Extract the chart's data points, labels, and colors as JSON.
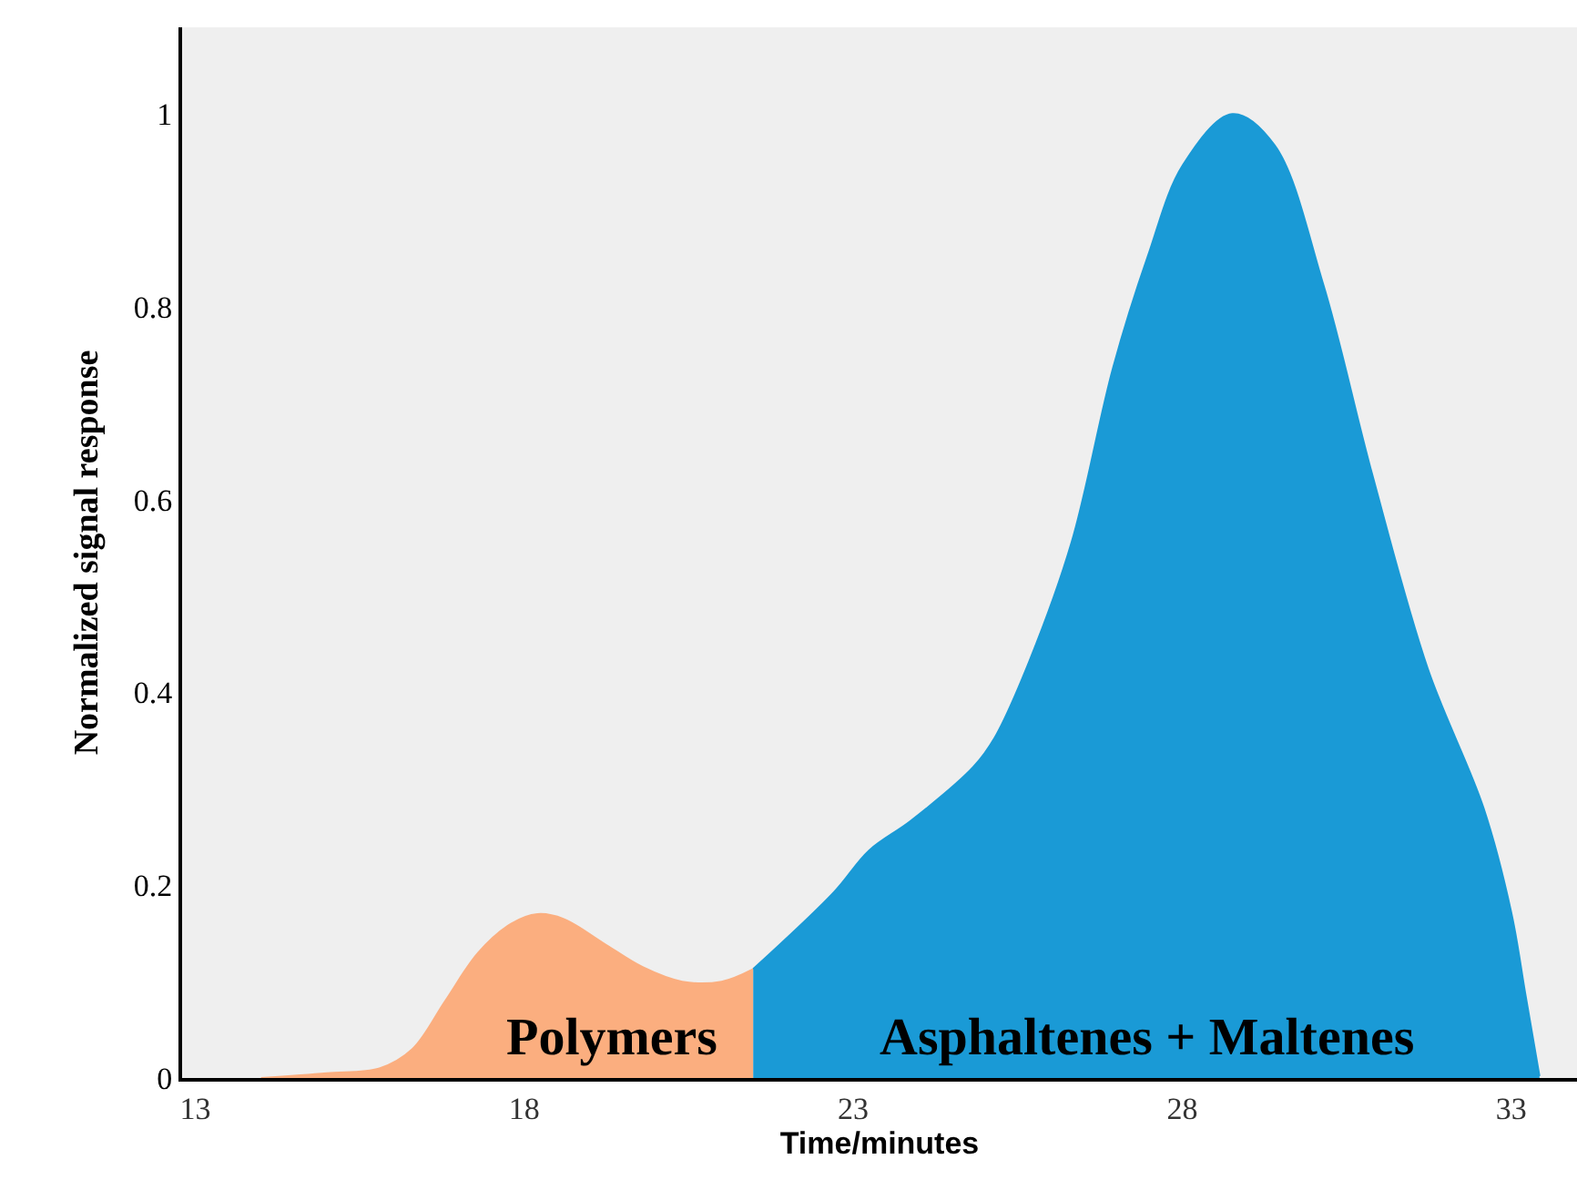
{
  "chart_data": {
    "type": "area",
    "xlabel": "Time/minutes",
    "ylabel": "Normalized signal response",
    "xlim": [
      12.8,
      34.0
    ],
    "ylim": [
      0,
      1.09
    ],
    "xticks": [
      13,
      18,
      23,
      28,
      33
    ],
    "yticks": [
      0,
      0.2,
      0.4,
      0.6,
      0.8,
      1
    ],
    "grid": false,
    "legend": false,
    "series": [
      {
        "name": "Polymers",
        "color": "#fbae7f",
        "x": [
          14.0,
          15.0,
          15.8,
          16.3,
          16.8,
          17.3,
          17.8,
          18.2,
          18.6,
          19.2,
          19.8,
          20.4,
          21.0,
          21.48
        ],
        "values": [
          0,
          0.005,
          0.01,
          0.03,
          0.08,
          0.13,
          0.16,
          0.17,
          0.165,
          0.14,
          0.115,
          0.1,
          0.1,
          0.113
        ]
      },
      {
        "name": "Asphaltenes + Maltenes",
        "color": "#1a9ad6",
        "x": [
          21.48,
          22.71,
          23.24,
          23.88,
          24.83,
          25.15,
          25.68,
          26.32,
          26.95,
          27.48,
          28.01,
          28.76,
          29.4,
          30.14,
          30.88,
          31.73,
          32.58,
          33.0,
          33.22,
          33.43
        ],
        "values": [
          0.113,
          0.193,
          0.236,
          0.267,
          0.323,
          0.353,
          0.433,
          0.556,
          0.737,
          0.853,
          0.947,
          1.0,
          0.968,
          0.824,
          0.628,
          0.425,
          0.28,
          0.172,
          0.085,
          0.002
        ]
      }
    ]
  }
}
